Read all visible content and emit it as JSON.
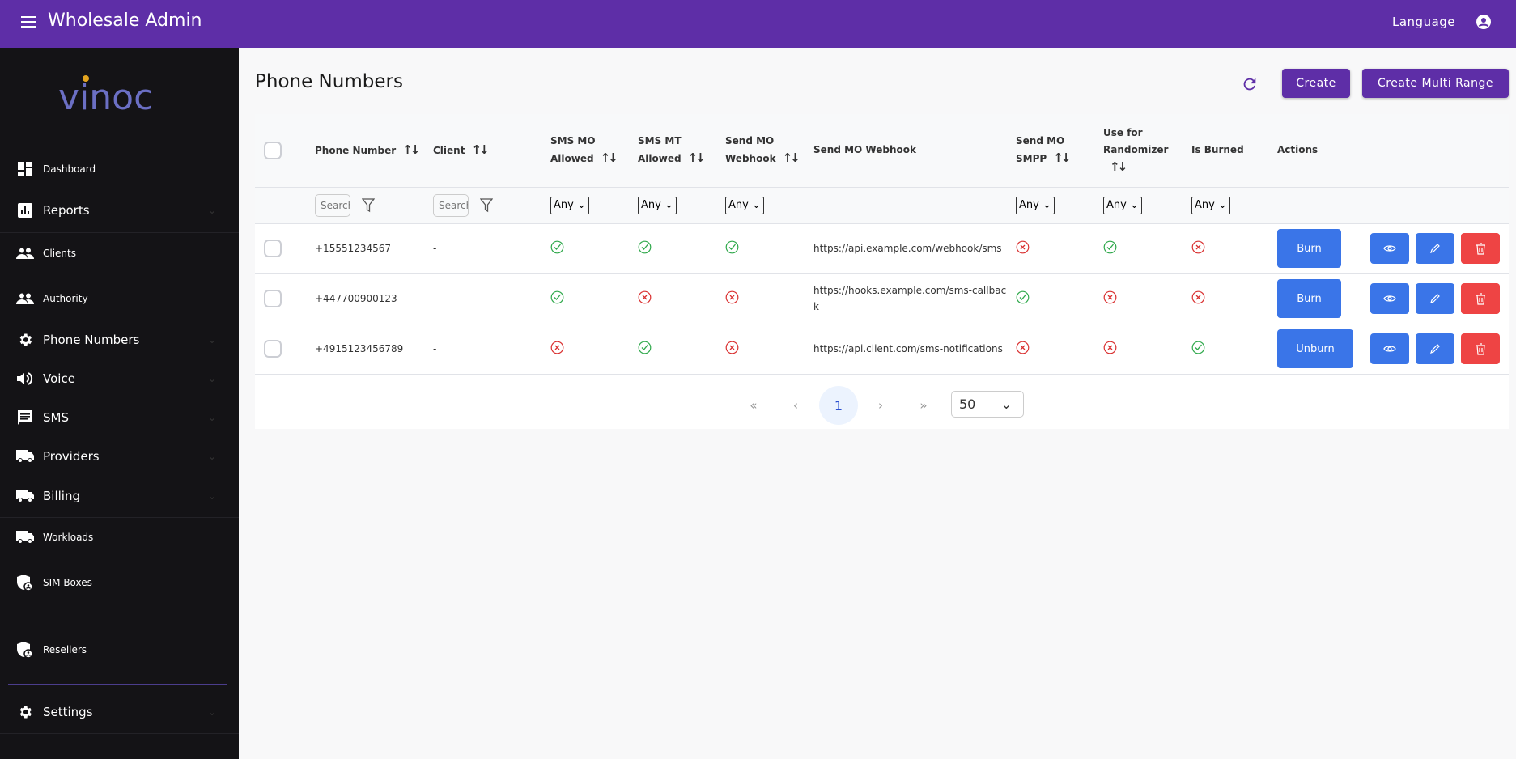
{
  "app": {
    "title": "Wholesale Admin",
    "language": "Language",
    "logo_text": "vinoc"
  },
  "sidebar": {
    "items": [
      {
        "label": "Dashboard",
        "icon": "dashboard-icon"
      },
      {
        "label": "Reports",
        "icon": "bar-chart-icon"
      },
      {
        "label": "Clients",
        "icon": "people-icon"
      },
      {
        "label": "Authority",
        "icon": "people-icon"
      },
      {
        "label": "Phone Numbers",
        "icon": "gear-icon"
      },
      {
        "label": "Voice",
        "icon": "speaker-icon"
      },
      {
        "label": "SMS",
        "icon": "message-icon"
      },
      {
        "label": "Providers",
        "icon": "truck-icon"
      },
      {
        "label": "Billing",
        "icon": "truck-icon"
      },
      {
        "label": "Workloads",
        "icon": "truck-icon"
      },
      {
        "label": "SIM Boxes",
        "icon": "shield-user-icon"
      },
      {
        "label": "Resellers",
        "icon": "shield-user-icon"
      },
      {
        "label": "Settings",
        "icon": "gear-icon"
      }
    ]
  },
  "page": {
    "title": "Phone Numbers",
    "create": "Create",
    "create_multi": "Create Multi Range"
  },
  "table": {
    "headers": {
      "phone": "Phone Number",
      "client": "Client",
      "sms_mo": "SMS MO Allowed",
      "sms_mt": "SMS MT Allowed",
      "send_mo_webhook": "Send MO Webhook",
      "webhook_url": "Send MO Webhook",
      "smpp": "Send MO SMPP",
      "randomizer": "Use for Randomizer",
      "burned": "Is Burned",
      "actions": "Actions"
    },
    "filters": {
      "search_placeholder": "Search",
      "any": "Any"
    },
    "rows": [
      {
        "phone": "+15551234567",
        "client": "-",
        "sms_mo": true,
        "sms_mt": true,
        "send_mo_webhook": true,
        "webhook_url": "https://api.example.com/webhook/sms",
        "smpp": false,
        "randomizer": true,
        "burned": false,
        "action": "Burn"
      },
      {
        "phone": "+447700900123",
        "client": "-",
        "sms_mo": true,
        "sms_mt": false,
        "send_mo_webhook": false,
        "webhook_url": "https://hooks.example.com/sms-callback",
        "smpp": true,
        "randomizer": false,
        "burned": false,
        "action": "Burn"
      },
      {
        "phone": "+4915123456789",
        "client": "-",
        "sms_mo": false,
        "sms_mt": true,
        "send_mo_webhook": false,
        "webhook_url": "https://api.client.com/sms-notifications",
        "smpp": false,
        "randomizer": false,
        "burned": true,
        "action": "Unburn"
      }
    ]
  },
  "pagination": {
    "first": "«",
    "prev": "‹",
    "current": "1",
    "next": "›",
    "last": "»",
    "per_page": "50"
  },
  "colors": {
    "brand": "#5e2ea7",
    "sidebar": "#141316",
    "action_blue": "#3a75e8",
    "danger": "#ee4444",
    "ok": "#2ea84a",
    "no": "#d92f2f"
  }
}
